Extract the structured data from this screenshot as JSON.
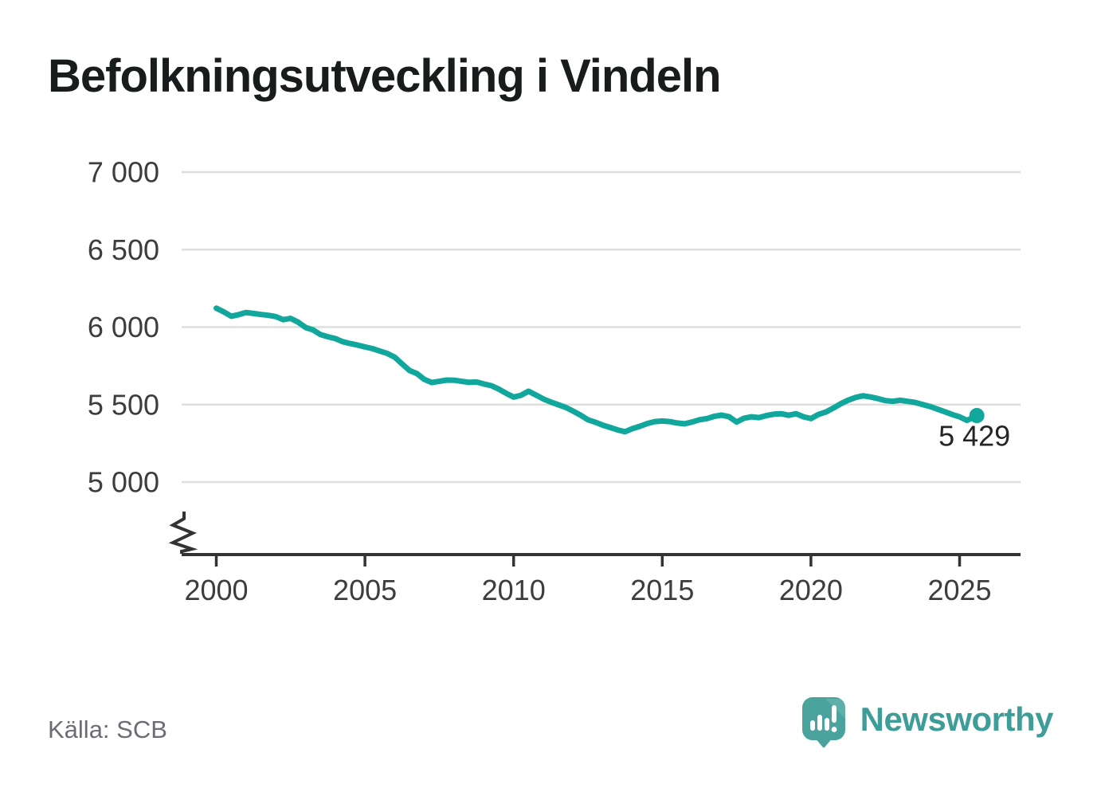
{
  "header": {
    "title": "Befolkningsutveckling i Vindeln"
  },
  "footer": {
    "source": "Källa: SCB",
    "brand": "Newsworthy",
    "brand_icon": "speech-bubble-bar-chart-icon"
  },
  "colors": {
    "line": "#12a79d",
    "grid": "#dedede",
    "axis": "#333333",
    "tick_text": "#3d3d3d",
    "title_text": "#191c1c",
    "source_text": "#6c6c75",
    "brand_teal": "#3f9d98",
    "logo_bubble": "#4aa39c"
  },
  "chart_data": {
    "type": "line",
    "title": "Befolkningsutveckling i Vindeln",
    "xlabel": "",
    "ylabel": "",
    "grid": true,
    "legend": false,
    "axis_break_bottom": true,
    "ylim": [
      5000,
      7000
    ],
    "xlim": [
      1999.8,
      2027
    ],
    "yticks": [
      {
        "value": 7000,
        "label": "7 000"
      },
      {
        "value": 6500,
        "label": "6 500"
      },
      {
        "value": 6000,
        "label": "6 000"
      },
      {
        "value": 5500,
        "label": "5 500"
      },
      {
        "value": 5000,
        "label": "5 000"
      }
    ],
    "xticks": [
      {
        "value": 2000,
        "label": "2000"
      },
      {
        "value": 2005,
        "label": "2005"
      },
      {
        "value": 2010,
        "label": "2010"
      },
      {
        "value": 2015,
        "label": "2015"
      },
      {
        "value": 2020,
        "label": "2020"
      },
      {
        "value": 2025,
        "label": "2025"
      }
    ],
    "end_point": {
      "x": 2025.58,
      "value": 5429,
      "label": "5 429"
    },
    "x": [
      2000.0,
      2000.25,
      2000.5,
      2000.75,
      2001.0,
      2001.25,
      2001.5,
      2001.75,
      2002.0,
      2002.25,
      2002.5,
      2002.75,
      2003.0,
      2003.25,
      2003.5,
      2003.75,
      2004.0,
      2004.25,
      2004.5,
      2004.75,
      2005.0,
      2005.25,
      2005.5,
      2005.75,
      2006.0,
      2006.25,
      2006.5,
      2006.75,
      2007.0,
      2007.25,
      2007.5,
      2007.75,
      2008.0,
      2008.25,
      2008.5,
      2008.75,
      2009.0,
      2009.25,
      2009.5,
      2009.75,
      2010.0,
      2010.25,
      2010.5,
      2010.75,
      2011.0,
      2011.25,
      2011.5,
      2011.75,
      2012.0,
      2012.25,
      2012.5,
      2012.75,
      2013.0,
      2013.25,
      2013.5,
      2013.75,
      2014.0,
      2014.25,
      2014.5,
      2014.75,
      2015.0,
      2015.25,
      2015.5,
      2015.75,
      2016.0,
      2016.25,
      2016.5,
      2016.75,
      2017.0,
      2017.25,
      2017.5,
      2017.75,
      2018.0,
      2018.25,
      2018.5,
      2018.75,
      2019.0,
      2019.25,
      2019.5,
      2019.75,
      2020.0,
      2020.25,
      2020.5,
      2020.75,
      2021.0,
      2021.25,
      2021.5,
      2021.75,
      2022.0,
      2022.25,
      2022.5,
      2022.75,
      2023.0,
      2023.25,
      2023.5,
      2023.75,
      2024.0,
      2024.25,
      2024.5,
      2024.75,
      2025.0,
      2025.25,
      2025.58
    ],
    "values": [
      6122,
      6098,
      6070,
      6080,
      6094,
      6088,
      6081,
      6076,
      6068,
      6048,
      6056,
      6032,
      5998,
      5982,
      5952,
      5938,
      5926,
      5906,
      5894,
      5884,
      5872,
      5861,
      5845,
      5830,
      5806,
      5762,
      5720,
      5700,
      5662,
      5642,
      5650,
      5658,
      5657,
      5650,
      5643,
      5646,
      5633,
      5622,
      5600,
      5573,
      5548,
      5560,
      5586,
      5562,
      5536,
      5516,
      5499,
      5482,
      5458,
      5432,
      5402,
      5386,
      5367,
      5352,
      5336,
      5325,
      5345,
      5360,
      5378,
      5390,
      5394,
      5390,
      5381,
      5376,
      5387,
      5402,
      5410,
      5424,
      5432,
      5421,
      5387,
      5412,
      5421,
      5416,
      5429,
      5438,
      5441,
      5431,
      5441,
      5421,
      5410,
      5436,
      5452,
      5477,
      5505,
      5528,
      5546,
      5557,
      5549,
      5539,
      5526,
      5521,
      5528,
      5521,
      5514,
      5501,
      5488,
      5471,
      5454,
      5436,
      5421,
      5398,
      5429
    ]
  }
}
